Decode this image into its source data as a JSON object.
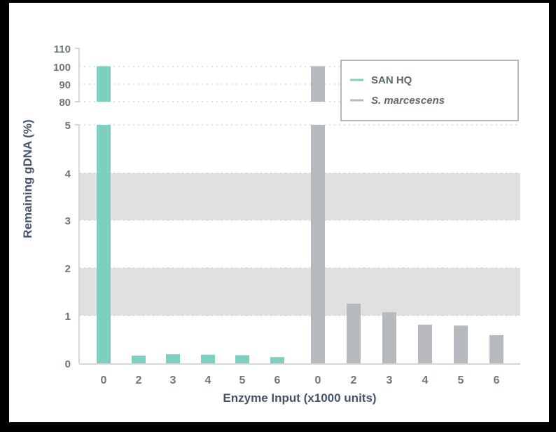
{
  "chart_data": {
    "type": "bar",
    "title": "",
    "xlabel": "Enzyme Input (x1000 units)",
    "ylabel": "Remaining gDNA (%)",
    "y_axis_break": true,
    "upper_panel": {
      "ylim": [
        80,
        110
      ],
      "ticks": [
        80,
        90,
        100,
        110
      ]
    },
    "lower_panel": {
      "ylim": [
        0,
        5
      ],
      "ticks": [
        0,
        1,
        2,
        3,
        4,
        5
      ]
    },
    "shaded_bands": [
      [
        1,
        2
      ],
      [
        3,
        4
      ]
    ],
    "grid": "dotted horizontal",
    "legend_position": "top-right",
    "series": [
      {
        "name": "SAN HQ",
        "color": "#7fcfc1",
        "categories": [
          "0",
          "2",
          "3",
          "4",
          "5",
          "6"
        ],
        "values": [
          100,
          0.16,
          0.19,
          0.18,
          0.17,
          0.13
        ]
      },
      {
        "name": "S. marcescens",
        "color": "#b6babe",
        "categories": [
          "0",
          "2",
          "3",
          "4",
          "5",
          "6"
        ],
        "values": [
          100,
          1.25,
          1.07,
          0.81,
          0.79,
          0.59
        ]
      }
    ]
  },
  "legend": {
    "items": [
      {
        "label": "SAN HQ",
        "color": "#7fcfc1"
      },
      {
        "label": "S. marcescens",
        "color": "#b6babe"
      }
    ]
  },
  "axis": {
    "x_title": "Enzyme Input (x1000 units)",
    "y_title": "Remaining gDNA (%)",
    "upper_ticks": [
      "110",
      "100",
      "90",
      "80"
    ],
    "lower_ticks": [
      "5",
      "4",
      "3",
      "2",
      "1",
      "0"
    ],
    "x_ticks": [
      "0",
      "2",
      "3",
      "4",
      "5",
      "6",
      "0",
      "2",
      "3",
      "4",
      "5",
      "6"
    ]
  }
}
